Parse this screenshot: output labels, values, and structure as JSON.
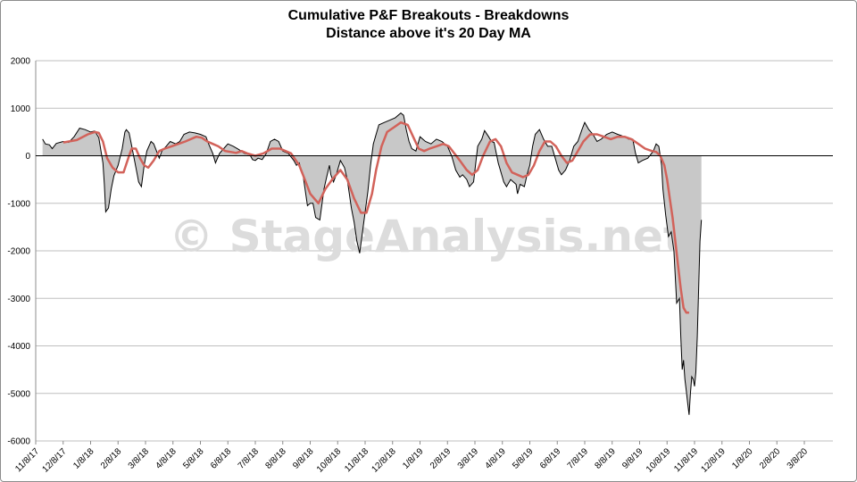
{
  "chart_data": {
    "type": "area",
    "title": "Cumulative P&F Breakouts - Breakdowns",
    "subtitle": "Distance above it's 20 Day MA",
    "watermark": "© StageAnalysis.net",
    "ylim": [
      -6000,
      2000
    ],
    "yticks": [
      2000,
      1000,
      0,
      -1000,
      -2000,
      -3000,
      -4000,
      -5000,
      -6000
    ],
    "xticks": [
      "11/8/17",
      "12/8/17",
      "1/8/18",
      "2/8/18",
      "3/8/18",
      "4/8/18",
      "5/8/18",
      "6/8/18",
      "7/8/18",
      "8/8/18",
      "9/8/18",
      "10/8/18",
      "11/8/18",
      "12/8/18",
      "1/8/19",
      "2/8/19",
      "3/8/19",
      "4/8/19",
      "5/8/19",
      "6/8/19",
      "7/8/19",
      "8/8/19",
      "9/8/19",
      "10/8/19",
      "11/8/19",
      "12/8/19",
      "1/8/20",
      "2/8/20",
      "3/8/20"
    ],
    "grid": true,
    "colors": {
      "area_fill": "#c8c8c8",
      "series_line": "#000000",
      "ma_line": "#d2625a",
      "grid": "#bfbfbf"
    },
    "series": [
      {
        "role": "distance",
        "points": [
          [
            0.25,
            350
          ],
          [
            0.35,
            250
          ],
          [
            0.5,
            230
          ],
          [
            0.6,
            150
          ],
          [
            0.75,
            260
          ],
          [
            1.0,
            300
          ],
          [
            1.2,
            280
          ],
          [
            1.4,
            400
          ],
          [
            1.6,
            580
          ],
          [
            1.8,
            550
          ],
          [
            2.0,
            500
          ],
          [
            2.15,
            520
          ],
          [
            2.3,
            380
          ],
          [
            2.45,
            -150
          ],
          [
            2.5,
            -600
          ],
          [
            2.55,
            -1180
          ],
          [
            2.65,
            -1100
          ],
          [
            2.75,
            -700
          ],
          [
            2.85,
            -420
          ],
          [
            3.0,
            -200
          ],
          [
            3.15,
            150
          ],
          [
            3.25,
            500
          ],
          [
            3.3,
            550
          ],
          [
            3.4,
            480
          ],
          [
            3.5,
            200
          ],
          [
            3.6,
            -100
          ],
          [
            3.7,
            -400
          ],
          [
            3.75,
            -550
          ],
          [
            3.8,
            -600
          ],
          [
            3.85,
            -650
          ],
          [
            3.95,
            -200
          ],
          [
            4.05,
            100
          ],
          [
            4.2,
            300
          ],
          [
            4.3,
            250
          ],
          [
            4.5,
            -50
          ],
          [
            4.6,
            100
          ],
          [
            4.75,
            200
          ],
          [
            4.9,
            300
          ],
          [
            5.1,
            250
          ],
          [
            5.25,
            300
          ],
          [
            5.4,
            450
          ],
          [
            5.6,
            500
          ],
          [
            5.8,
            480
          ],
          [
            6.0,
            450
          ],
          [
            6.2,
            400
          ],
          [
            6.3,
            250
          ],
          [
            6.45,
            50
          ],
          [
            6.55,
            -150
          ],
          [
            6.7,
            50
          ],
          [
            6.85,
            150
          ],
          [
            7.0,
            250
          ],
          [
            7.2,
            200
          ],
          [
            7.4,
            130
          ],
          [
            7.6,
            50
          ],
          [
            7.8,
            20
          ],
          [
            7.9,
            -80
          ],
          [
            8.0,
            -100
          ],
          [
            8.1,
            -50
          ],
          [
            8.25,
            -80
          ],
          [
            8.4,
            50
          ],
          [
            8.55,
            300
          ],
          [
            8.7,
            350
          ],
          [
            8.85,
            300
          ],
          [
            9.0,
            100
          ],
          [
            9.2,
            50
          ],
          [
            9.4,
            -100
          ],
          [
            9.5,
            -200
          ],
          [
            9.6,
            -150
          ],
          [
            9.75,
            -450
          ],
          [
            9.9,
            -1050
          ],
          [
            10.0,
            -1000
          ],
          [
            10.1,
            -1000
          ],
          [
            10.2,
            -1300
          ],
          [
            10.35,
            -1350
          ],
          [
            10.5,
            -700
          ],
          [
            10.6,
            -450
          ],
          [
            10.7,
            -200
          ],
          [
            10.75,
            -400
          ],
          [
            10.85,
            -550
          ],
          [
            10.95,
            -400
          ],
          [
            11.1,
            -100
          ],
          [
            11.25,
            -250
          ],
          [
            11.35,
            -500
          ],
          [
            11.5,
            -1100
          ],
          [
            11.6,
            -1400
          ],
          [
            11.7,
            -1800
          ],
          [
            11.8,
            -2050
          ],
          [
            11.95,
            -1400
          ],
          [
            12.1,
            -750
          ],
          [
            12.2,
            -200
          ],
          [
            12.3,
            250
          ],
          [
            12.4,
            450
          ],
          [
            12.5,
            650
          ],
          [
            12.7,
            700
          ],
          [
            12.9,
            750
          ],
          [
            13.1,
            800
          ],
          [
            13.3,
            900
          ],
          [
            13.4,
            850
          ],
          [
            13.5,
            550
          ],
          [
            13.6,
            300
          ],
          [
            13.7,
            150
          ],
          [
            13.85,
            100
          ],
          [
            14.0,
            400
          ],
          [
            14.2,
            300
          ],
          [
            14.4,
            250
          ],
          [
            14.6,
            350
          ],
          [
            14.8,
            300
          ],
          [
            15.0,
            200
          ],
          [
            15.15,
            0
          ],
          [
            15.3,
            -300
          ],
          [
            15.45,
            -450
          ],
          [
            15.55,
            -400
          ],
          [
            15.7,
            -500
          ],
          [
            15.8,
            -650
          ],
          [
            15.95,
            -550
          ],
          [
            16.1,
            200
          ],
          [
            16.25,
            350
          ],
          [
            16.35,
            530
          ],
          [
            16.5,
            400
          ],
          [
            16.6,
            300
          ],
          [
            16.7,
            280
          ],
          [
            16.85,
            -150
          ],
          [
            16.95,
            -350
          ],
          [
            17.05,
            -550
          ],
          [
            17.15,
            -650
          ],
          [
            17.3,
            -500
          ],
          [
            17.5,
            -600
          ],
          [
            17.55,
            -800
          ],
          [
            17.65,
            -600
          ],
          [
            17.8,
            -650
          ],
          [
            17.9,
            -400
          ],
          [
            18.0,
            -200
          ],
          [
            18.1,
            200
          ],
          [
            18.2,
            450
          ],
          [
            18.35,
            550
          ],
          [
            18.5,
            350
          ],
          [
            18.65,
            200
          ],
          [
            18.8,
            200
          ],
          [
            18.95,
            -100
          ],
          [
            19.05,
            -300
          ],
          [
            19.15,
            -400
          ],
          [
            19.3,
            -300
          ],
          [
            19.45,
            -100
          ],
          [
            19.6,
            200
          ],
          [
            19.75,
            300
          ],
          [
            19.9,
            550
          ],
          [
            20.0,
            700
          ],
          [
            20.15,
            550
          ],
          [
            20.3,
            450
          ],
          [
            20.45,
            300
          ],
          [
            20.6,
            350
          ],
          [
            20.8,
            450
          ],
          [
            21.0,
            500
          ],
          [
            21.2,
            450
          ],
          [
            21.45,
            400
          ],
          [
            21.6,
            350
          ],
          [
            21.75,
            350
          ],
          [
            21.85,
            50
          ],
          [
            21.95,
            -150
          ],
          [
            22.1,
            -100
          ],
          [
            22.3,
            -50
          ],
          [
            22.5,
            100
          ],
          [
            22.6,
            250
          ],
          [
            22.7,
            200
          ],
          [
            22.8,
            -200
          ],
          [
            22.85,
            -700
          ],
          [
            22.95,
            -1250
          ],
          [
            23.05,
            -1700
          ],
          [
            23.15,
            -1600
          ],
          [
            23.25,
            -2000
          ],
          [
            23.35,
            -3100
          ],
          [
            23.45,
            -3000
          ],
          [
            23.5,
            -3800
          ],
          [
            23.55,
            -4500
          ],
          [
            23.6,
            -4300
          ],
          [
            23.65,
            -4700
          ],
          [
            23.7,
            -4950
          ],
          [
            23.75,
            -5200
          ],
          [
            23.8,
            -5450
          ],
          [
            23.85,
            -5000
          ],
          [
            23.9,
            -4650
          ],
          [
            23.95,
            -4700
          ],
          [
            24.0,
            -4850
          ],
          [
            24.05,
            -4550
          ],
          [
            24.1,
            -3800
          ],
          [
            24.15,
            -2800
          ],
          [
            24.2,
            -1800
          ],
          [
            24.25,
            -1350
          ]
        ]
      },
      {
        "role": "moving_average",
        "points": [
          [
            1.0,
            280
          ],
          [
            1.5,
            330
          ],
          [
            1.9,
            450
          ],
          [
            2.15,
            500
          ],
          [
            2.3,
            480
          ],
          [
            2.45,
            300
          ],
          [
            2.6,
            -50
          ],
          [
            2.8,
            -250
          ],
          [
            3.0,
            -350
          ],
          [
            3.2,
            -350
          ],
          [
            3.4,
            0
          ],
          [
            3.5,
            150
          ],
          [
            3.65,
            150
          ],
          [
            3.8,
            -50
          ],
          [
            3.95,
            -200
          ],
          [
            4.1,
            -250
          ],
          [
            4.3,
            -100
          ],
          [
            4.5,
            100
          ],
          [
            4.7,
            150
          ],
          [
            4.95,
            200
          ],
          [
            5.2,
            250
          ],
          [
            5.45,
            300
          ],
          [
            5.65,
            350
          ],
          [
            5.85,
            400
          ],
          [
            6.05,
            380
          ],
          [
            6.25,
            300
          ],
          [
            6.45,
            250
          ],
          [
            6.65,
            200
          ],
          [
            6.9,
            100
          ],
          [
            7.1,
            80
          ],
          [
            7.3,
            60
          ],
          [
            7.5,
            100
          ],
          [
            7.7,
            50
          ],
          [
            8.0,
            0
          ],
          [
            8.3,
            50
          ],
          [
            8.6,
            150
          ],
          [
            8.9,
            150
          ],
          [
            9.1,
            100
          ],
          [
            9.3,
            50
          ],
          [
            9.6,
            -200
          ],
          [
            9.8,
            -500
          ],
          [
            10.0,
            -800
          ],
          [
            10.3,
            -1000
          ],
          [
            10.55,
            -700
          ],
          [
            10.8,
            -500
          ],
          [
            11.1,
            -300
          ],
          [
            11.35,
            -500
          ],
          [
            11.6,
            -900
          ],
          [
            11.85,
            -1200
          ],
          [
            12.05,
            -1200
          ],
          [
            12.25,
            -800
          ],
          [
            12.4,
            -300
          ],
          [
            12.6,
            200
          ],
          [
            12.8,
            500
          ],
          [
            13.05,
            600
          ],
          [
            13.3,
            700
          ],
          [
            13.55,
            650
          ],
          [
            13.75,
            400
          ],
          [
            13.95,
            150
          ],
          [
            14.15,
            100
          ],
          [
            14.35,
            150
          ],
          [
            14.6,
            200
          ],
          [
            14.85,
            250
          ],
          [
            15.05,
            200
          ],
          [
            15.25,
            50
          ],
          [
            15.45,
            -100
          ],
          [
            15.7,
            -300
          ],
          [
            15.9,
            -400
          ],
          [
            16.1,
            -300
          ],
          [
            16.3,
            0
          ],
          [
            16.55,
            300
          ],
          [
            16.75,
            350
          ],
          [
            16.95,
            200
          ],
          [
            17.15,
            -150
          ],
          [
            17.35,
            -350
          ],
          [
            17.55,
            -400
          ],
          [
            17.75,
            -450
          ],
          [
            17.95,
            -400
          ],
          [
            18.15,
            -200
          ],
          [
            18.35,
            100
          ],
          [
            18.55,
            300
          ],
          [
            18.75,
            300
          ],
          [
            18.95,
            200
          ],
          [
            19.15,
            0
          ],
          [
            19.35,
            -150
          ],
          [
            19.55,
            -100
          ],
          [
            19.75,
            100
          ],
          [
            19.95,
            300
          ],
          [
            20.2,
            450
          ],
          [
            20.45,
            450
          ],
          [
            20.7,
            400
          ],
          [
            20.95,
            350
          ],
          [
            21.2,
            400
          ],
          [
            21.45,
            400
          ],
          [
            21.7,
            350
          ],
          [
            21.95,
            250
          ],
          [
            22.2,
            150
          ],
          [
            22.45,
            100
          ],
          [
            22.6,
            80
          ],
          [
            22.75,
            0
          ],
          [
            22.9,
            -200
          ],
          [
            23.0,
            -500
          ],
          [
            23.1,
            -900
          ],
          [
            23.2,
            -1300
          ],
          [
            23.3,
            -1800
          ],
          [
            23.4,
            -2300
          ],
          [
            23.5,
            -2800
          ],
          [
            23.6,
            -3200
          ],
          [
            23.7,
            -3300
          ],
          [
            23.8,
            -3300
          ]
        ]
      }
    ]
  }
}
